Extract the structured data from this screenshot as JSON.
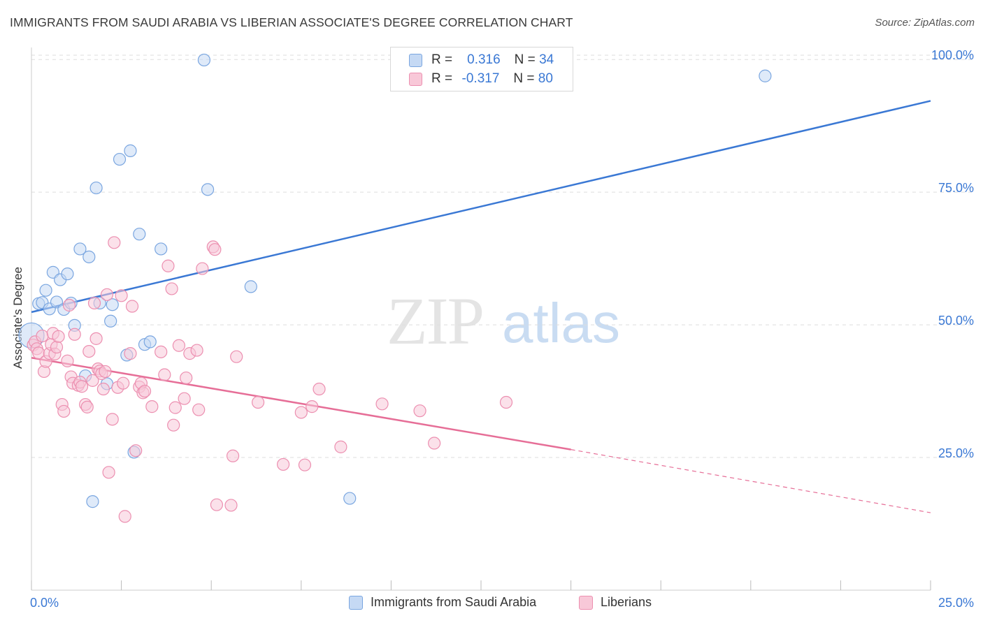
{
  "title": "IMMIGRANTS FROM SAUDI ARABIA VS LIBERIAN ASSOCIATE'S DEGREE CORRELATION CHART",
  "source": "Source: ZipAtlas.com",
  "watermark": {
    "zip": "ZIP",
    "atlas": "atlas"
  },
  "legend": {
    "rows": [
      {
        "r_label": "R =",
        "r_value": "0.316",
        "n_label": "N =",
        "n_value": "34"
      },
      {
        "r_label": "R =",
        "r_value": "-0.317",
        "n_label": "N =",
        "n_value": "80"
      }
    ]
  },
  "colors": {
    "blue_fill": "#c5d9f4",
    "blue_stroke": "#7aa6e0",
    "blue_line": "#3a78d4",
    "pink_fill": "#f8c8d8",
    "pink_stroke": "#ec8fb0",
    "pink_line": "#e66e97",
    "accent_text": "#3a78d4",
    "grid": "#dddddd"
  },
  "chart_data": {
    "type": "scatter",
    "title": "IMMIGRANTS FROM SAUDI ARABIA VS LIBERIAN ASSOCIATE'S DEGREE CORRELATION CHART",
    "xlabel": "",
    "ylabel": "Associate's Degree",
    "xlim": [
      0,
      25
    ],
    "ylim": [
      0,
      102
    ],
    "x_tick_labels": [
      "0.0%",
      "25.0%"
    ],
    "y_ticks": [
      25,
      50,
      75,
      100
    ],
    "y_tick_labels": [
      "25.0%",
      "50.0%",
      "75.0%",
      "100.0%"
    ],
    "grid": true,
    "legend_position": "bottom-center",
    "series": [
      {
        "name": "Immigrants from Saudi Arabia",
        "color": "blue",
        "R": 0.316,
        "N": 34,
        "trend": {
          "x0": 0,
          "y0": 52.4,
          "x1": 25,
          "y1": 92.2
        },
        "points": [
          {
            "x": 0.0,
            "y": 48.0,
            "big": true
          },
          {
            "x": 0.2,
            "y": 54.0
          },
          {
            "x": 0.3,
            "y": 54.2
          },
          {
            "x": 0.4,
            "y": 56.5
          },
          {
            "x": 0.5,
            "y": 53.0
          },
          {
            "x": 0.6,
            "y": 59.9
          },
          {
            "x": 0.7,
            "y": 54.3
          },
          {
            "x": 0.8,
            "y": 58.5
          },
          {
            "x": 0.9,
            "y": 52.9
          },
          {
            "x": 1.0,
            "y": 59.6
          },
          {
            "x": 1.1,
            "y": 54.1
          },
          {
            "x": 1.2,
            "y": 49.9
          },
          {
            "x": 1.35,
            "y": 64.3
          },
          {
            "x": 1.6,
            "y": 62.8
          },
          {
            "x": 1.8,
            "y": 75.8
          },
          {
            "x": 1.5,
            "y": 40.4
          },
          {
            "x": 1.7,
            "y": 16.7
          },
          {
            "x": 1.9,
            "y": 54.1
          },
          {
            "x": 2.1,
            "y": 38.9
          },
          {
            "x": 2.2,
            "y": 50.7
          },
          {
            "x": 2.25,
            "y": 53.8
          },
          {
            "x": 2.45,
            "y": 81.2
          },
          {
            "x": 2.65,
            "y": 44.3
          },
          {
            "x": 2.75,
            "y": 82.8
          },
          {
            "x": 2.85,
            "y": 26.0
          },
          {
            "x": 3.0,
            "y": 67.1
          },
          {
            "x": 3.15,
            "y": 46.3
          },
          {
            "x": 3.3,
            "y": 46.8
          },
          {
            "x": 3.6,
            "y": 64.3
          },
          {
            "x": 4.8,
            "y": 99.9
          },
          {
            "x": 4.9,
            "y": 75.5
          },
          {
            "x": 6.1,
            "y": 57.2
          },
          {
            "x": 8.85,
            "y": 17.3
          },
          {
            "x": 20.4,
            "y": 96.9
          }
        ]
      },
      {
        "name": "Liberians",
        "color": "pink",
        "R": -0.317,
        "N": 80,
        "trend": {
          "x0": 0,
          "y0": 43.8,
          "x1": 15.0,
          "y1": 26.5,
          "dash_to_x": 25,
          "dash_to_y": 14.6
        },
        "points": [
          {
            "x": 0.05,
            "y": 46.2
          },
          {
            "x": 0.1,
            "y": 46.8
          },
          {
            "x": 0.15,
            "y": 45.5
          },
          {
            "x": 0.2,
            "y": 44.7
          },
          {
            "x": 0.3,
            "y": 47.9
          },
          {
            "x": 0.35,
            "y": 41.2
          },
          {
            "x": 0.4,
            "y": 43.1
          },
          {
            "x": 0.5,
            "y": 44.6
          },
          {
            "x": 0.55,
            "y": 46.3
          },
          {
            "x": 0.6,
            "y": 48.4
          },
          {
            "x": 0.65,
            "y": 44.5
          },
          {
            "x": 0.7,
            "y": 45.8
          },
          {
            "x": 0.75,
            "y": 47.8
          },
          {
            "x": 0.85,
            "y": 35.0
          },
          {
            "x": 0.9,
            "y": 33.7
          },
          {
            "x": 1.0,
            "y": 43.2
          },
          {
            "x": 1.05,
            "y": 53.7
          },
          {
            "x": 1.1,
            "y": 40.2
          },
          {
            "x": 1.15,
            "y": 39.0
          },
          {
            "x": 1.2,
            "y": 48.2
          },
          {
            "x": 1.3,
            "y": 38.6
          },
          {
            "x": 1.35,
            "y": 39.2
          },
          {
            "x": 1.4,
            "y": 38.4
          },
          {
            "x": 1.5,
            "y": 35.0
          },
          {
            "x": 1.55,
            "y": 34.5
          },
          {
            "x": 1.6,
            "y": 45.0
          },
          {
            "x": 1.7,
            "y": 39.5
          },
          {
            "x": 1.75,
            "y": 54.1
          },
          {
            "x": 1.8,
            "y": 47.4
          },
          {
            "x": 1.85,
            "y": 41.7
          },
          {
            "x": 1.9,
            "y": 41.3
          },
          {
            "x": 1.95,
            "y": 40.8
          },
          {
            "x": 2.0,
            "y": 37.9
          },
          {
            "x": 2.05,
            "y": 41.2
          },
          {
            "x": 2.1,
            "y": 55.7
          },
          {
            "x": 2.15,
            "y": 22.2
          },
          {
            "x": 2.25,
            "y": 32.2
          },
          {
            "x": 2.3,
            "y": 65.5
          },
          {
            "x": 2.4,
            "y": 38.2
          },
          {
            "x": 2.5,
            "y": 55.5
          },
          {
            "x": 2.55,
            "y": 39.0
          },
          {
            "x": 2.6,
            "y": 13.9
          },
          {
            "x": 2.75,
            "y": 44.6
          },
          {
            "x": 2.8,
            "y": 53.5
          },
          {
            "x": 2.9,
            "y": 26.3
          },
          {
            "x": 3.0,
            "y": 38.3
          },
          {
            "x": 3.05,
            "y": 39.0
          },
          {
            "x": 3.1,
            "y": 37.2
          },
          {
            "x": 3.15,
            "y": 37.5
          },
          {
            "x": 3.35,
            "y": 34.6
          },
          {
            "x": 3.6,
            "y": 44.9
          },
          {
            "x": 3.7,
            "y": 40.6
          },
          {
            "x": 3.8,
            "y": 61.1
          },
          {
            "x": 3.9,
            "y": 56.8
          },
          {
            "x": 3.95,
            "y": 31.1
          },
          {
            "x": 4.0,
            "y": 34.4
          },
          {
            "x": 4.1,
            "y": 46.1
          },
          {
            "x": 4.25,
            "y": 36.1
          },
          {
            "x": 4.3,
            "y": 40.0
          },
          {
            "x": 4.4,
            "y": 44.6
          },
          {
            "x": 4.6,
            "y": 45.2
          },
          {
            "x": 4.65,
            "y": 34.0
          },
          {
            "x": 4.75,
            "y": 60.6
          },
          {
            "x": 5.05,
            "y": 64.7
          },
          {
            "x": 5.1,
            "y": 64.2
          },
          {
            "x": 5.15,
            "y": 16.1
          },
          {
            "x": 5.55,
            "y": 16.0
          },
          {
            "x": 5.6,
            "y": 25.3
          },
          {
            "x": 5.7,
            "y": 44.0
          },
          {
            "x": 6.3,
            "y": 35.4
          },
          {
            "x": 7.0,
            "y": 23.7
          },
          {
            "x": 7.5,
            "y": 33.5
          },
          {
            "x": 7.6,
            "y": 23.6
          },
          {
            "x": 7.8,
            "y": 34.6
          },
          {
            "x": 8.0,
            "y": 37.9
          },
          {
            "x": 8.6,
            "y": 27.0
          },
          {
            "x": 9.75,
            "y": 35.1
          },
          {
            "x": 10.8,
            "y": 33.8
          },
          {
            "x": 11.2,
            "y": 27.7
          },
          {
            "x": 13.2,
            "y": 35.4
          }
        ]
      }
    ]
  }
}
